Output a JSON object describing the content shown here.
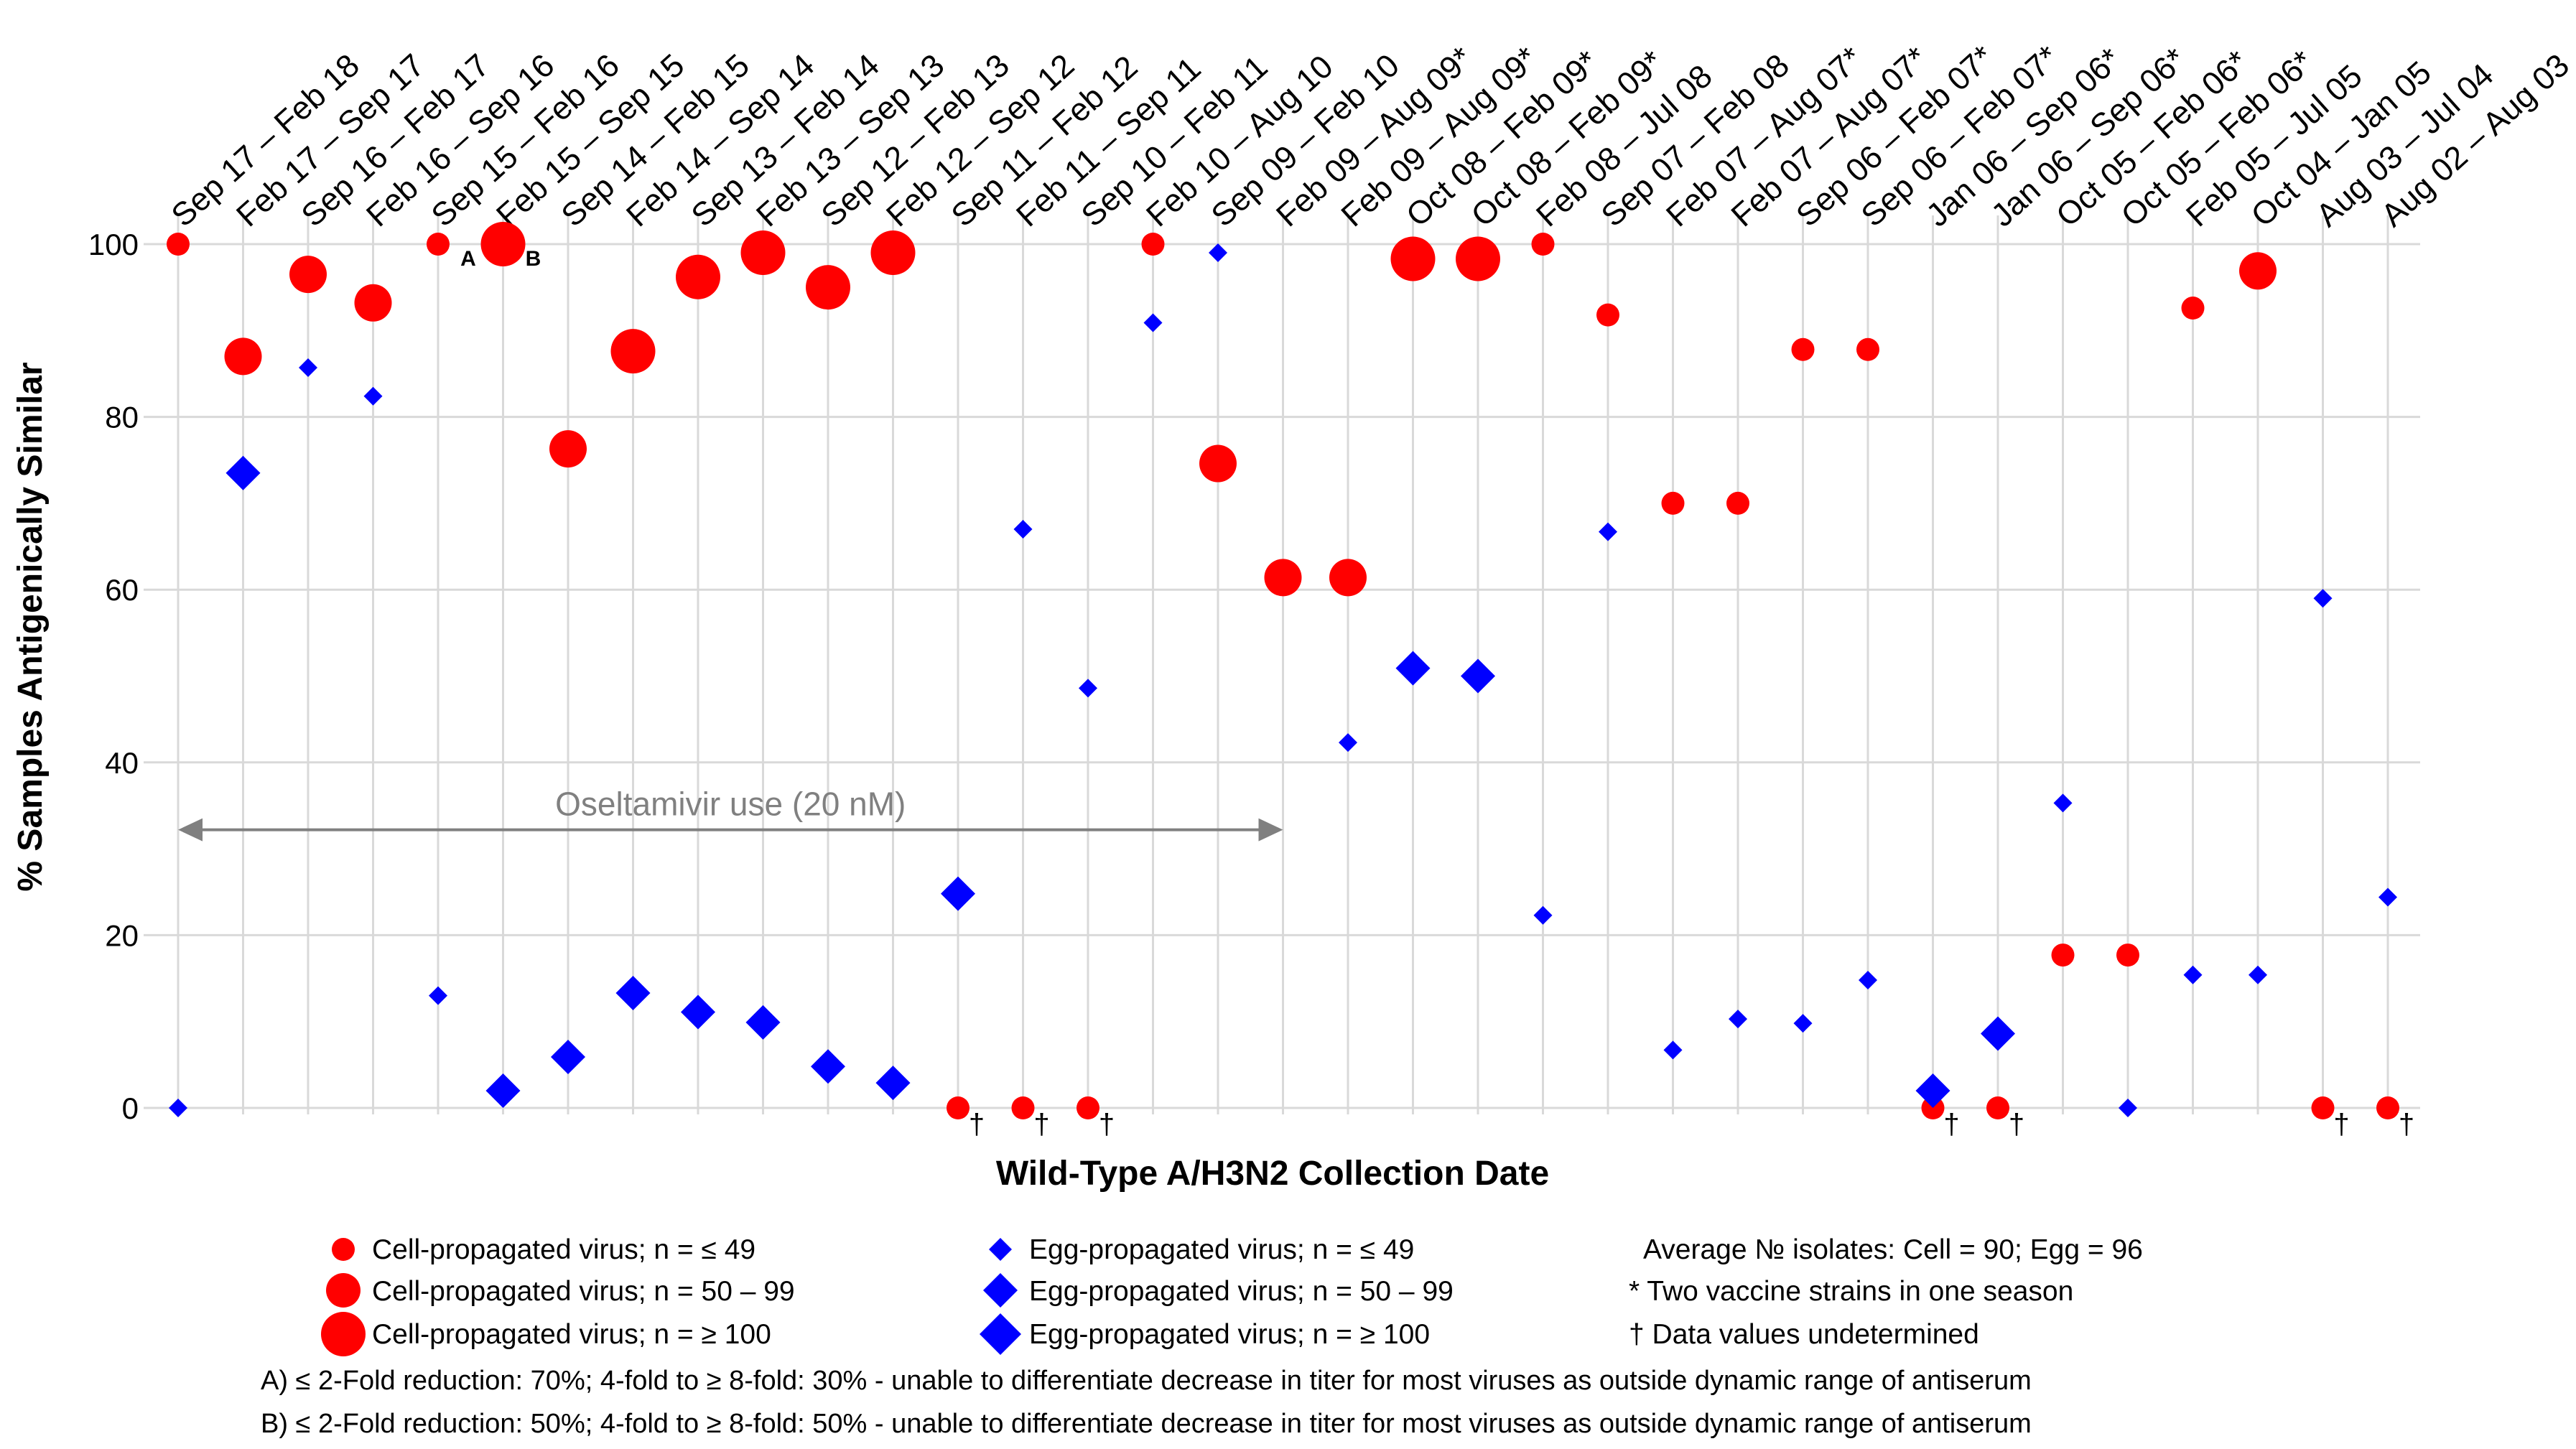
{
  "chart_data": {
    "type": "scatter",
    "xlabel": "Wild-Type A/H3N2 Collection Date",
    "ylabel": "% Samples Antigenically Similar",
    "ylim": [
      0,
      100
    ],
    "yticks": [
      "0",
      "20",
      "40",
      "60",
      "80",
      "100"
    ],
    "grid": true,
    "categories": [
      "Sep 17 – Feb 18",
      "Feb 17 – Sep 17",
      "Sep 16 – Feb 17",
      "Feb 16 – Sep 16",
      "Sep 15 – Feb 16",
      "Feb 15 – Sep 15",
      "Sep 14 – Feb 15",
      "Feb 14 – Sep 14",
      "Sep 13 – Feb 14",
      "Feb 13 – Sep 13",
      "Sep 12 – Feb 13",
      "Feb 12 – Sep 12",
      "Sep 11 – Feb 12",
      "Feb 11 – Sep 11",
      "Sep 10 – Feb 11",
      "Feb 10 – Aug 10",
      "Sep 09 – Feb 10",
      "Feb 09 – Aug 09*",
      "Feb 09 – Aug 09*",
      "Oct 08 – Feb 09*",
      "Oct 08 – Feb 09*",
      "Feb 08 – Jul 08",
      "Sep 07 – Feb 08",
      "Feb 07 – Aug 07*",
      "Feb 07 – Aug 07*",
      "Sep 06 – Feb 07*",
      "Sep 06 – Feb 07*",
      "Jan 06 – Sep 06*",
      "Jan 06 – Sep 06*",
      "Oct 05 – Feb 06*",
      "Oct 05 – Feb 06*",
      "Feb 05 – Jul 05",
      "Oct 04 – Jan 05",
      "Aug 03 – Jul 04",
      "Aug 02 – Aug 03"
    ],
    "series": [
      {
        "name": "Cell-propagated virus",
        "color": "#ff0000",
        "marker": "circle",
        "values": [
          100,
          87,
          96.5,
          93.2,
          100,
          100,
          76.3,
          87.6,
          96.2,
          99,
          95,
          99,
          0,
          0,
          0,
          100,
          74.6,
          61.4,
          61.4,
          98.3,
          98.3,
          100,
          91.8,
          70,
          70,
          87.8,
          87.8,
          0,
          0,
          17.7,
          17.7,
          92.6,
          96.9,
          0,
          0
        ],
        "size_class": [
          1,
          2,
          2,
          2,
          1,
          3,
          2,
          3,
          3,
          3,
          3,
          3,
          1,
          1,
          1,
          1,
          2,
          2,
          2,
          3,
          3,
          1,
          1,
          1,
          1,
          1,
          1,
          1,
          1,
          1,
          1,
          1,
          2,
          1,
          1
        ]
      },
      {
        "name": "Egg-propagated virus",
        "color": "#0000ff",
        "marker": "diamond",
        "values": [
          0,
          73.5,
          85.7,
          82.4,
          13,
          2,
          5.9,
          13.3,
          11.1,
          9.9,
          4.8,
          2.9,
          24.8,
          67,
          48.6,
          90.9,
          99,
          null,
          42.3,
          50.9,
          50,
          22.3,
          66.7,
          6.7,
          10.3,
          9.8,
          14.8,
          2,
          8.6,
          35.3,
          0,
          15.4,
          15.4,
          59,
          24.4
        ],
        "size_class": [
          1,
          2,
          1,
          1,
          1,
          2,
          2,
          2,
          2,
          2,
          2,
          2,
          2,
          1,
          1,
          1,
          1,
          1,
          1,
          2,
          2,
          1,
          1,
          1,
          1,
          1,
          1,
          2,
          2,
          1,
          1,
          1,
          1,
          1,
          1
        ]
      }
    ],
    "undetermined_marks": [
      12,
      13,
      14,
      27,
      28,
      33,
      34
    ],
    "dagger_symbol": "†",
    "point_notes": [
      {
        "index": 4,
        "series": 0,
        "label": "A"
      },
      {
        "index": 5,
        "series": 0,
        "label": "B"
      }
    ],
    "annotation": {
      "text": "Oseltamivir use (20 nM)",
      "from_index": 0,
      "to_index": 17,
      "y": 32.2
    },
    "legend": {
      "cell": [
        "Cell-propagated virus; n = ≤ 49",
        "Cell-propagated virus; n = 50 – 99",
        "Cell-propagated virus; n = ≥ 100"
      ],
      "egg": [
        "Egg-propagated virus; n = ≤ 49",
        "Egg-propagated virus; n = 50 – 99",
        "Egg-propagated virus; n = ≥ 100"
      ],
      "notes": [
        "Average № isolates: Cell = 90; Egg = 96",
        "* Two vaccine strains in one season",
        "† Data values undetermined"
      ]
    },
    "footnotes": [
      "A) ≤ 2-Fold reduction: 70%; 4-fold to ≥ 8-fold: 30% - unable to differentiate decrease in titer for most viruses as outside dynamic range of antiserum",
      "B) ≤ 2-Fold reduction: 50%; 4-fold to ≥ 8-fold: 50% - unable to differentiate decrease in titer for most viruses as outside dynamic range of antiserum"
    ]
  }
}
